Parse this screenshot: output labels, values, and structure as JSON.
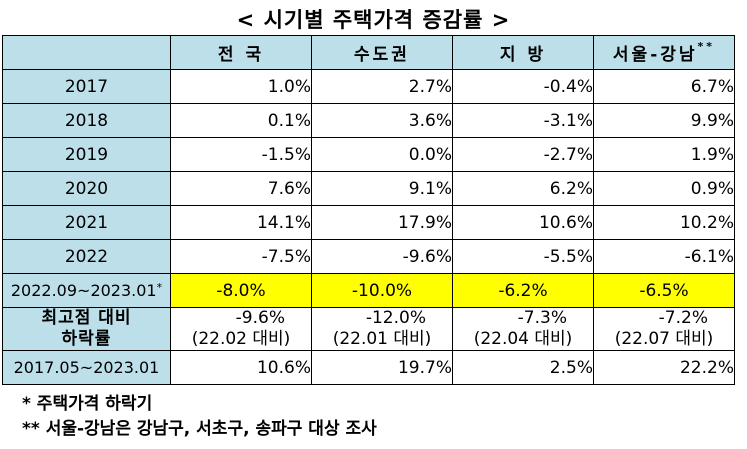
{
  "title": "< 시기별 주택가격 증감률 >",
  "columns": [
    "전  국",
    "수도권",
    "지  방",
    "서울-강남"
  ],
  "columns_sup": "**",
  "rows": [
    {
      "period": "2017",
      "values": [
        "1.0%",
        "2.7%",
        "-0.4%",
        "6.7%"
      ]
    },
    {
      "period": "2018",
      "values": [
        "0.1%",
        "3.6%",
        "-3.1%",
        "9.9%"
      ]
    },
    {
      "period": "2019",
      "values": [
        "-1.5%",
        "0.0%",
        "-2.7%",
        "1.9%"
      ]
    },
    {
      "period": "2020",
      "values": [
        "7.6%",
        "9.1%",
        "6.2%",
        "0.9%"
      ]
    },
    {
      "period": "2021",
      "values": [
        "14.1%",
        "17.9%",
        "10.6%",
        "10.2%"
      ]
    },
    {
      "period": "2022",
      "values": [
        "-7.5%",
        "-9.6%",
        "-5.5%",
        "-6.1%"
      ]
    }
  ],
  "highlight_row": {
    "period": "2022.09~2023.01",
    "period_sup": "*",
    "values": [
      "-8.0%",
      "-10.0%",
      "-6.2%",
      "-6.5%"
    ]
  },
  "peak_row": {
    "period_line1": "최고점 대비",
    "period_line2": "하락률",
    "values": [
      "-9.6%",
      "-12.0%",
      "-7.3%",
      "-7.2%"
    ],
    "refs": [
      "(22.02 대비)",
      "(22.01 대비)",
      "(22.04 대비)",
      "(22.07 대비)"
    ]
  },
  "total_row": {
    "period": "2017.05~2023.01",
    "values": [
      "10.6%",
      "19.7%",
      "2.5%",
      "22.2%"
    ]
  },
  "notes": [
    "*  주택가격 하락기",
    "** 서울-강남은 강남구, 서초구, 송파구 대상 조사"
  ],
  "colors": {
    "header_bg": "#bcdfe9",
    "highlight": "#ffff00"
  }
}
